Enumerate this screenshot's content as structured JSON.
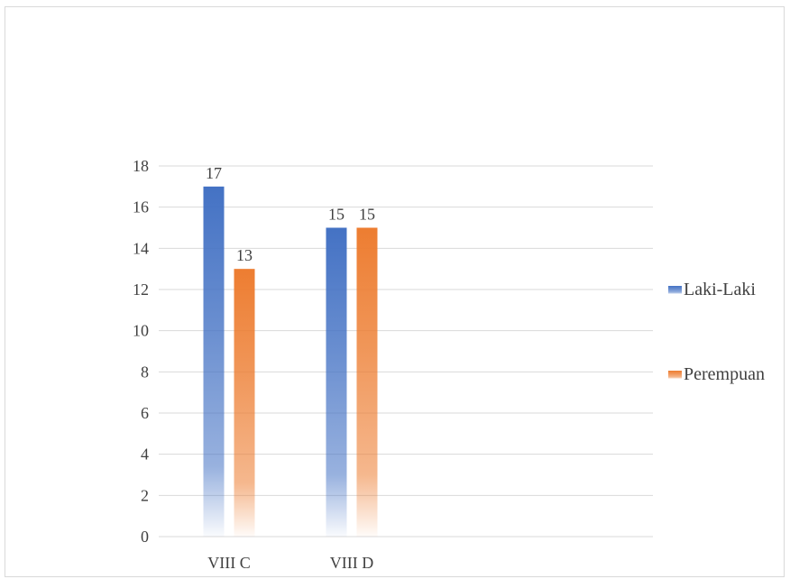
{
  "chart_data": {
    "type": "bar",
    "categories": [
      "VIII C",
      "VIII D"
    ],
    "series": [
      {
        "name": "Laki-Laki",
        "values": [
          17,
          15
        ],
        "color": "#4472c4"
      },
      {
        "name": "Perempuan",
        "values": [
          13,
          15
        ],
        "color": "#ed7d31"
      }
    ],
    "ylim": [
      0,
      18
    ],
    "yticks": [
      0,
      2,
      4,
      6,
      8,
      10,
      12,
      14,
      16,
      18
    ],
    "grid": true,
    "legend_position": "right",
    "bar_fill": "vertical gradient fading to white at the base",
    "title": "",
    "xlabel": "",
    "ylabel": ""
  }
}
